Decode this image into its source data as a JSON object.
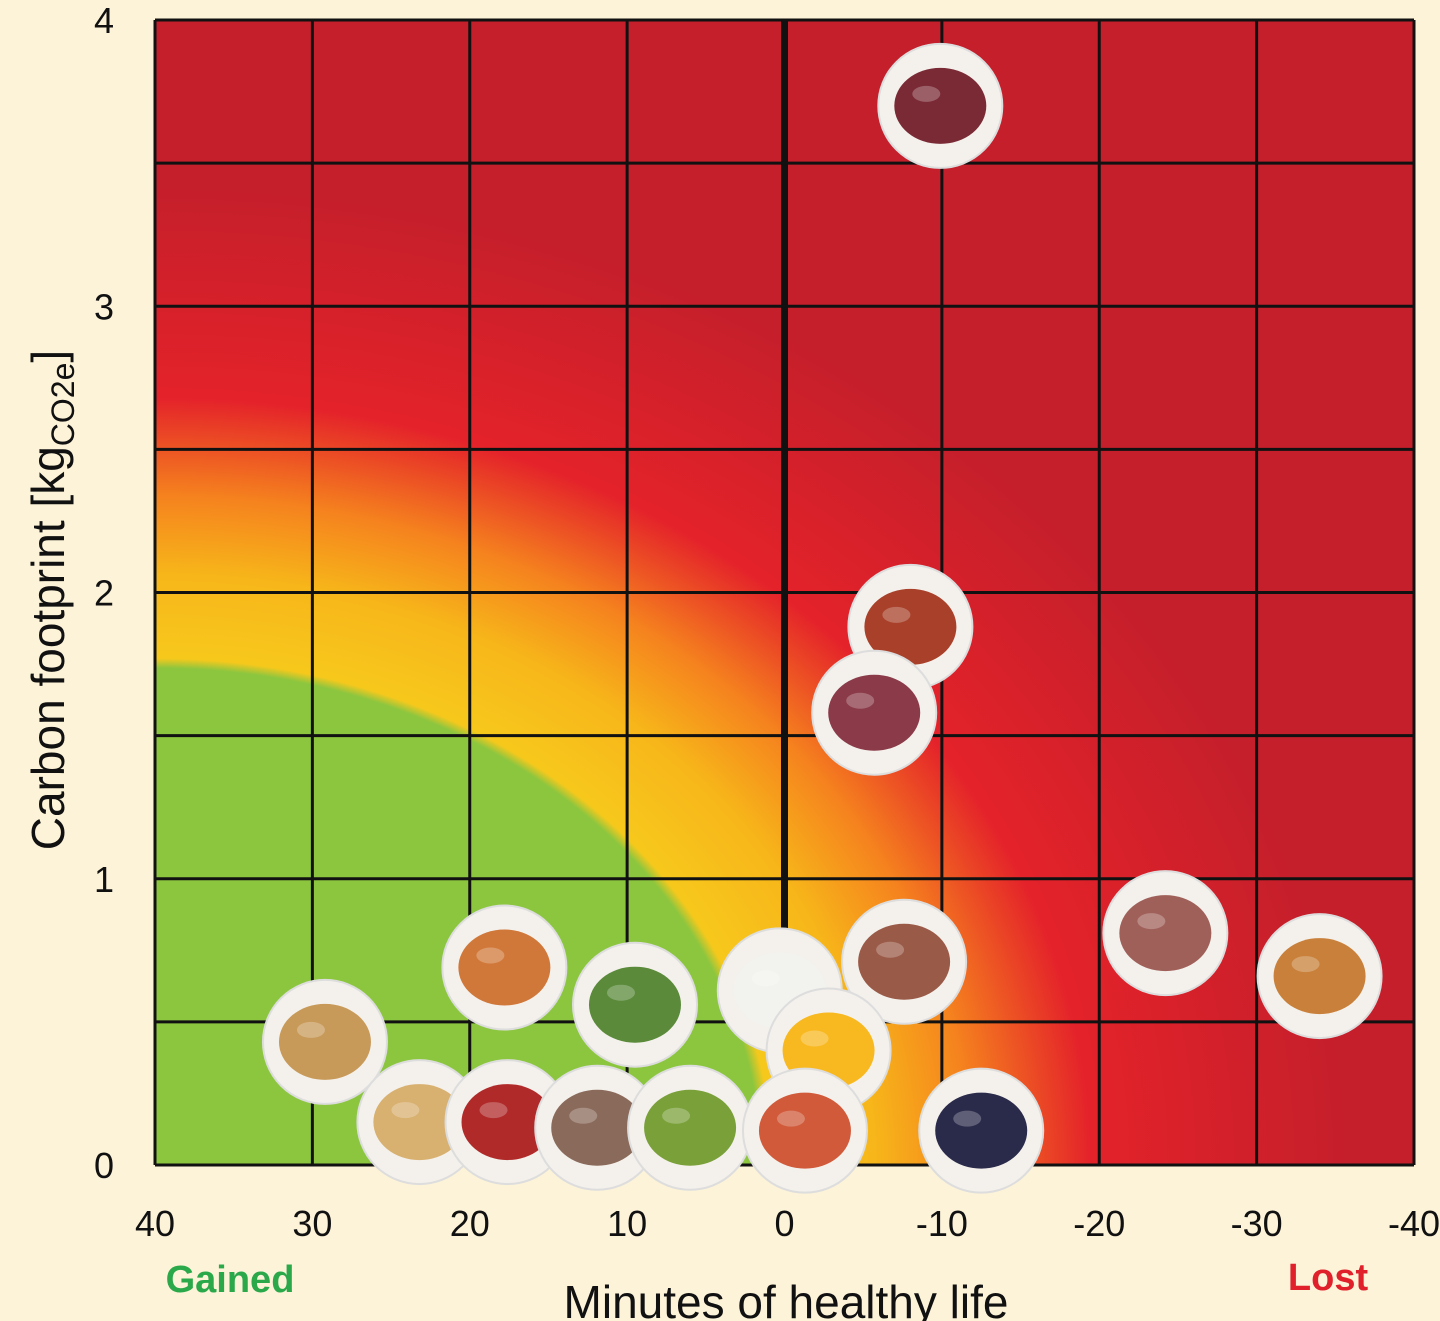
{
  "chart_data": {
    "type": "scatter",
    "xlabel": "Minutes of healthy life",
    "ylabel": "Carbon footprint [kg",
    "ylabel_sub": "CO2e",
    "ylabel_end": "]",
    "x_left_label": "Gained",
    "x_right_label": "Lost",
    "xlim": [
      40,
      -40
    ],
    "ylim": [
      0,
      4
    ],
    "x_reversed": true,
    "grid": true,
    "x_ticks": [
      "40",
      "30",
      "20",
      "10",
      "0",
      "-10",
      "-20",
      "-30",
      "-40"
    ],
    "x_tick_values": [
      40,
      30,
      20,
      10,
      0,
      -10,
      -20,
      -30,
      -40
    ],
    "y_ticks": [
      "0",
      "1",
      "2",
      "3",
      "4"
    ],
    "y_tick_values": [
      0,
      1,
      2,
      3,
      4
    ],
    "background": "radial gradient from bottom-left: green (gained & low carbon) to yellow, orange and red",
    "colors": {
      "green": "#8cc63f",
      "yellow": "#f7c81c",
      "orange": "#f5911e",
      "red": "#e4222a",
      "dark_red": "#c41f2b",
      "gained": "#2aa84a",
      "lost": "#e0202a",
      "background": "#fdf3d8"
    },
    "points": [
      {
        "icon": "steak-icon",
        "x": -9.9,
        "y": 3.7,
        "color": "#7a2a35"
      },
      {
        "icon": "pork-chop-icon",
        "x": -8,
        "y": 1.88,
        "color": "#a8402a"
      },
      {
        "icon": "lamb-slices-icon",
        "x": -5.7,
        "y": 1.58,
        "color": "#8a3a48"
      },
      {
        "icon": "pizza-icon",
        "x": -7.6,
        "y": 0.71,
        "color": "#9a5a48"
      },
      {
        "icon": "ham-icon",
        "x": -24.2,
        "y": 0.81,
        "color": "#a0605a"
      },
      {
        "icon": "hot-dog-icon",
        "x": -34,
        "y": 0.66,
        "color": "#c8803a"
      },
      {
        "icon": "salmon-icon",
        "x": 17.8,
        "y": 0.69,
        "color": "#d0783a"
      },
      {
        "icon": "pbj-sandwich-icon",
        "x": 29.2,
        "y": 0.43,
        "color": "#c89a5a"
      },
      {
        "icon": "cucumber-icon",
        "x": 9.5,
        "y": 0.56,
        "color": "#5a8a3a"
      },
      {
        "icon": "milk-icon",
        "x": 0.3,
        "y": 0.61,
        "color": "#f2f2ee"
      },
      {
        "icon": "fried-egg-icon",
        "x": -2.8,
        "y": 0.4,
        "color": "#f8b820"
      },
      {
        "icon": "soda-glass-icon",
        "x": -12.5,
        "y": 0.12,
        "color": "#2a2a4a"
      },
      {
        "icon": "peanuts-icon",
        "x": 23.2,
        "y": 0.15,
        "color": "#d8b070"
      },
      {
        "icon": "apple-icon",
        "x": 17.6,
        "y": 0.15,
        "color": "#b02a2a"
      },
      {
        "icon": "quinoa-icon",
        "x": 11.9,
        "y": 0.13,
        "color": "#8a6a5a"
      },
      {
        "icon": "grilled-vegetables-icon",
        "x": 6,
        "y": 0.13,
        "color": "#7aa03a"
      },
      {
        "icon": "gummy-candy-icon",
        "x": -1.3,
        "y": 0.12,
        "color": "#d05a3a"
      }
    ]
  }
}
